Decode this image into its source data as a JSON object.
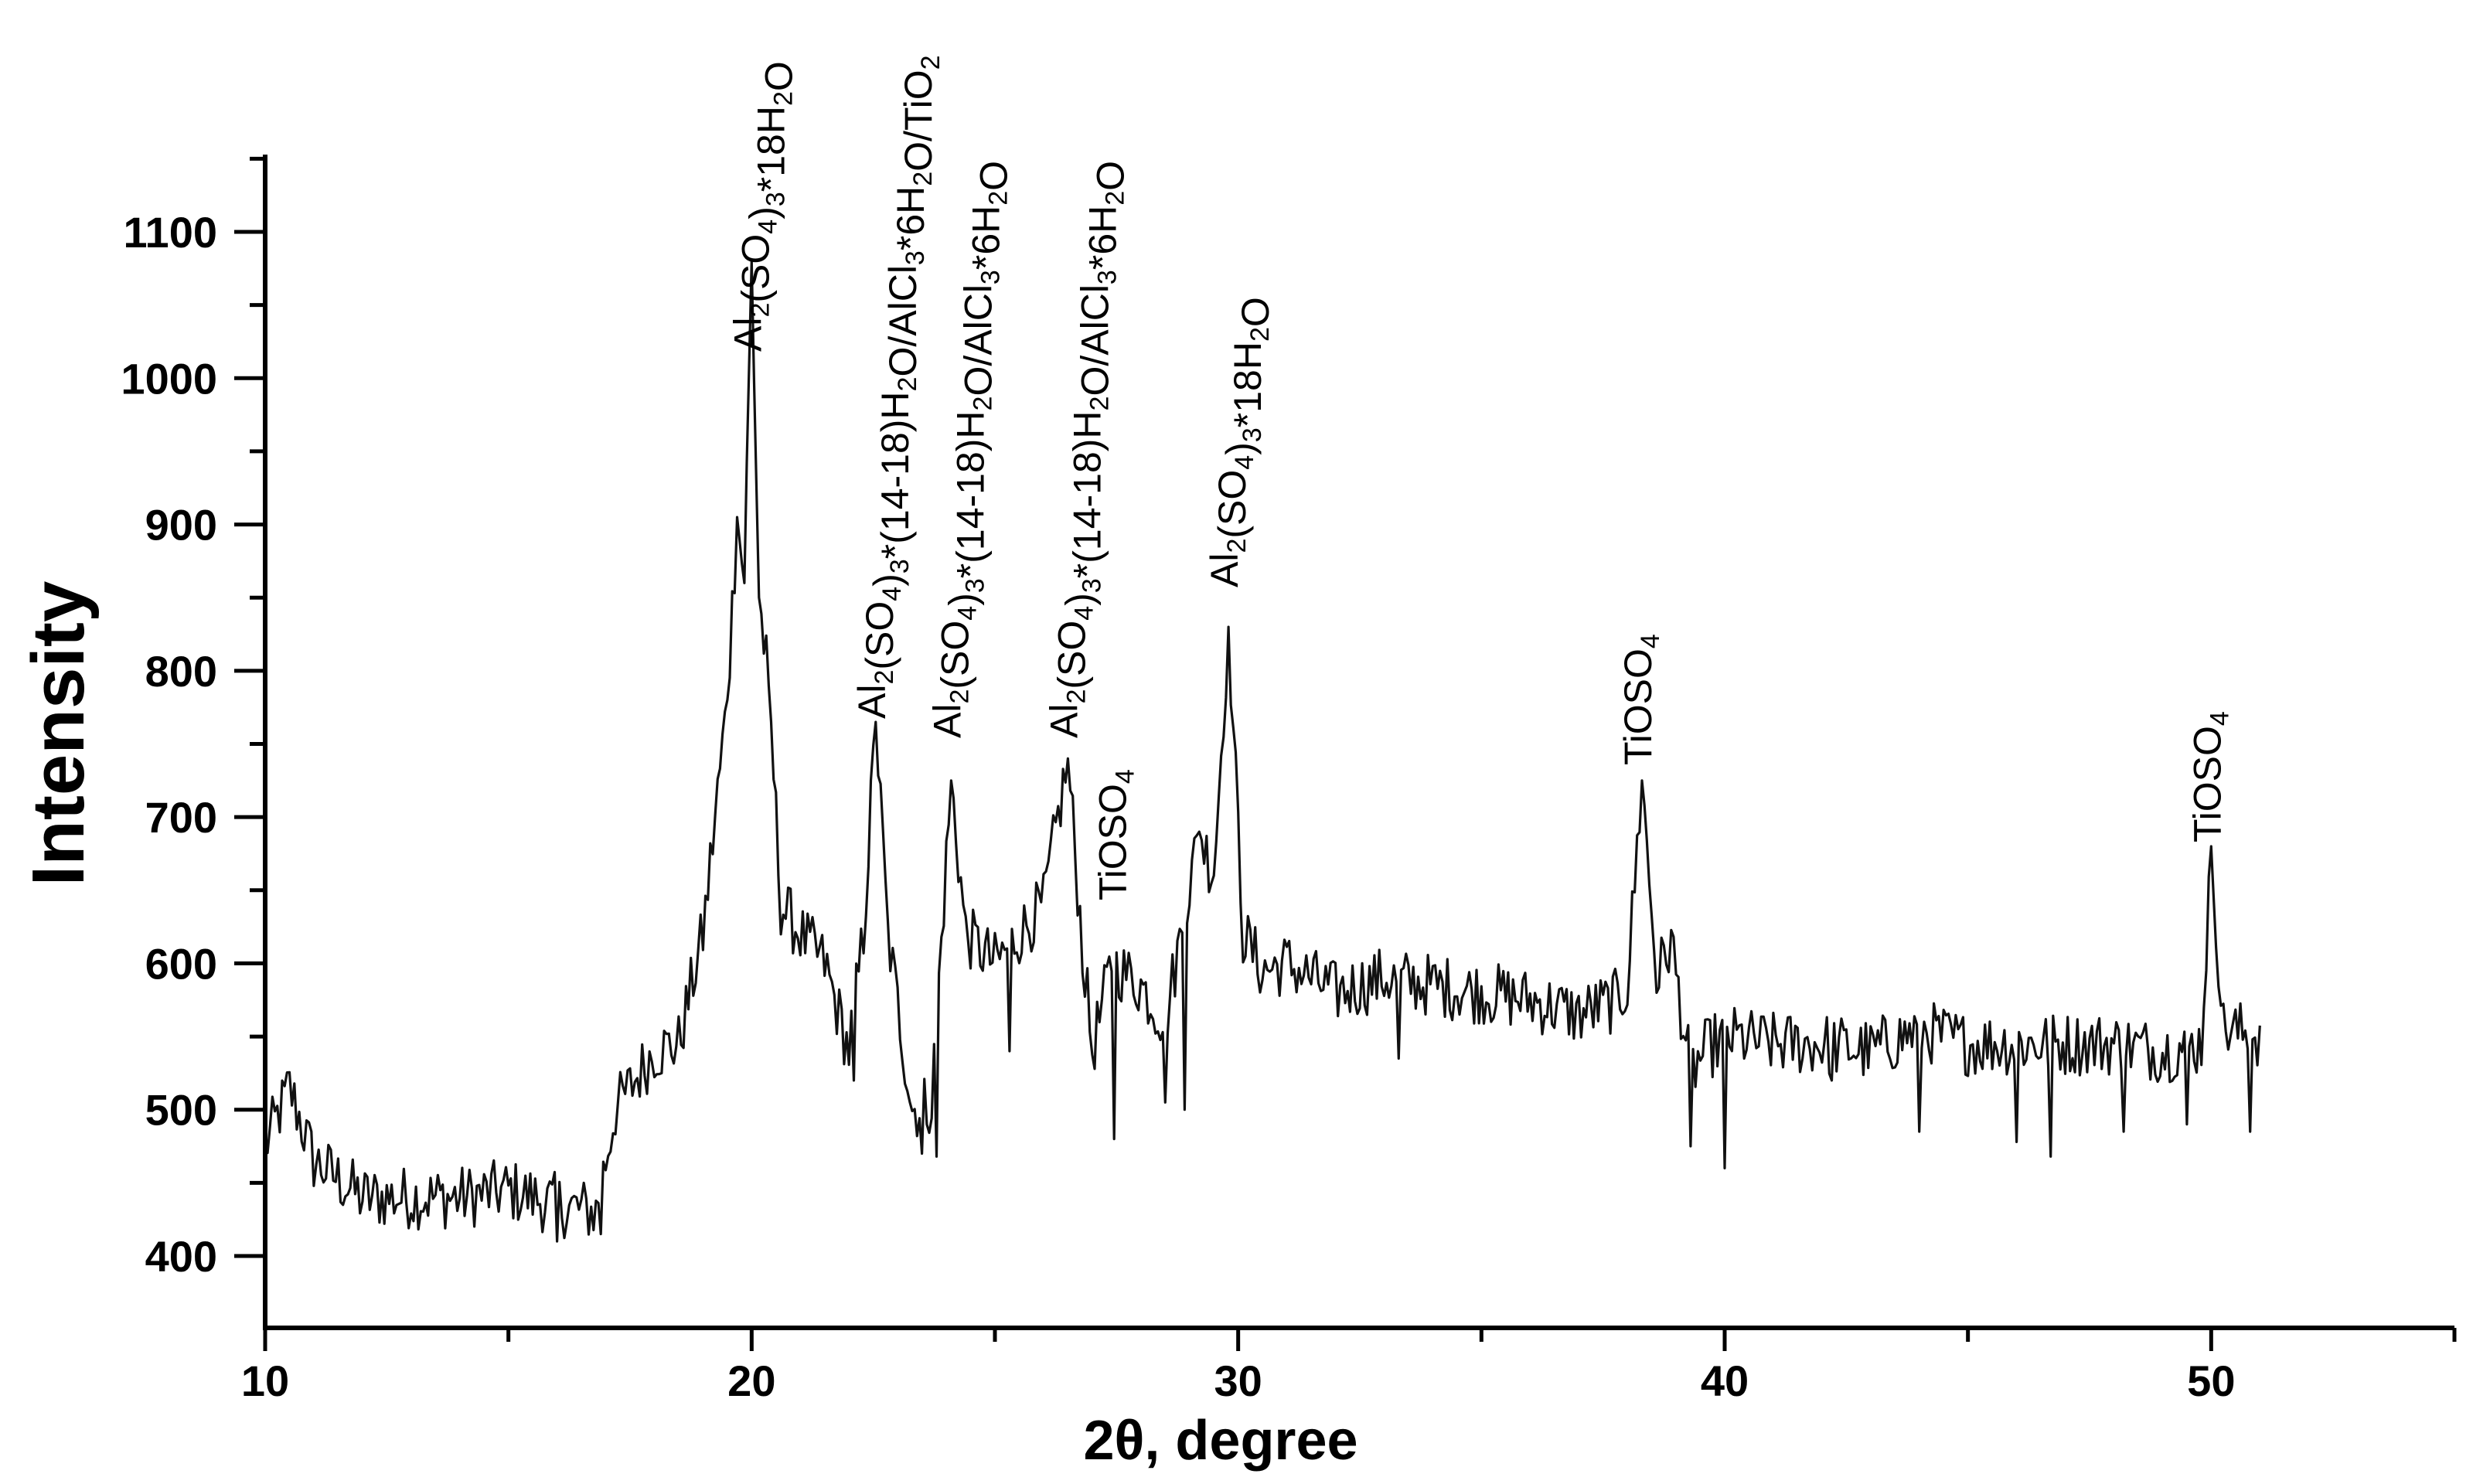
{
  "chart_data": {
    "type": "line",
    "xlabel": "2θ,  degree",
    "ylabel": "Intensity",
    "xlim": [
      10,
      55
    ],
    "ylim": [
      350,
      1150
    ],
    "x_ticks": [
      10,
      20,
      30,
      40,
      50
    ],
    "y_ticks": [
      400,
      500,
      600,
      700,
      800,
      900,
      1000,
      1100
    ],
    "grid": false,
    "line_color": "#111111",
    "series": [
      {
        "x_step": 0.05,
        "anchors": [
          [
            10.0,
            475
          ],
          [
            10.5,
            515
          ],
          [
            11.0,
            465
          ],
          [
            12.0,
            440
          ],
          [
            13.0,
            440
          ],
          [
            14.0,
            440
          ],
          [
            15.0,
            445
          ],
          [
            16.0,
            435
          ],
          [
            16.8,
            430
          ],
          [
            17.2,
            500
          ],
          [
            18.0,
            540
          ],
          [
            18.5,
            545
          ],
          [
            19.0,
            620
          ],
          [
            19.5,
            780
          ],
          [
            19.7,
            905
          ],
          [
            19.85,
            860
          ],
          [
            20.0,
            1080
          ],
          [
            20.15,
            850
          ],
          [
            20.35,
            790
          ],
          [
            20.6,
            640
          ],
          [
            21.0,
            620
          ],
          [
            21.5,
            600
          ],
          [
            22.0,
            540
          ],
          [
            22.3,
            620
          ],
          [
            22.55,
            765
          ],
          [
            22.8,
            620
          ],
          [
            23.3,
            500
          ],
          [
            23.7,
            505
          ],
          [
            24.1,
            725
          ],
          [
            24.4,
            620
          ],
          [
            25.0,
            600
          ],
          [
            26.0,
            640
          ],
          [
            26.5,
            740
          ],
          [
            26.8,
            610
          ],
          [
            27.0,
            540
          ],
          [
            27.4,
            600
          ],
          [
            28.0,
            585
          ],
          [
            28.5,
            560
          ],
          [
            29.2,
            690
          ],
          [
            29.5,
            660
          ],
          [
            29.8,
            830
          ],
          [
            30.1,
            620
          ],
          [
            30.5,
            595
          ],
          [
            31.0,
            600
          ],
          [
            32.0,
            580
          ],
          [
            33.0,
            590
          ],
          [
            34.0,
            585
          ],
          [
            35.0,
            580
          ],
          [
            36.0,
            575
          ],
          [
            37.0,
            565
          ],
          [
            37.8,
            575
          ],
          [
            38.0,
            585
          ],
          [
            38.3,
            725
          ],
          [
            38.6,
            590
          ],
          [
            38.9,
            615
          ],
          [
            39.3,
            525
          ],
          [
            39.6,
            540
          ],
          [
            40.0,
            550
          ],
          [
            41.0,
            545
          ],
          [
            42.0,
            545
          ],
          [
            43.0,
            540
          ],
          [
            44.0,
            555
          ],
          [
            45.0,
            545
          ],
          [
            46.0,
            545
          ],
          [
            47.0,
            545
          ],
          [
            48.0,
            545
          ],
          [
            49.0,
            540
          ],
          [
            49.8,
            545
          ],
          [
            50.0,
            680
          ],
          [
            50.25,
            555
          ],
          [
            51.0,
            550
          ]
        ],
        "dips": [
          [
            16.0,
            410
          ],
          [
            16.9,
            415
          ],
          [
            22.1,
            520
          ],
          [
            23.5,
            470
          ],
          [
            23.8,
            468
          ],
          [
            25.3,
            540
          ],
          [
            27.45,
            480
          ],
          [
            28.5,
            505
          ],
          [
            28.9,
            500
          ],
          [
            33.3,
            535
          ],
          [
            39.3,
            475
          ],
          [
            40.0,
            460
          ],
          [
            42.2,
            520
          ],
          [
            44.0,
            485
          ],
          [
            46.0,
            478
          ],
          [
            46.7,
            468
          ],
          [
            48.2,
            485
          ],
          [
            49.5,
            490
          ],
          [
            50.8,
            485
          ]
        ]
      }
    ],
    "annotations": [
      {
        "text": "Al2(SO4)3*18H2O",
        "x": 20.0
      },
      {
        "text": "Al2(SO4)3*(14-18)H2O/AlCl3*6H2O/TiO2",
        "x": 22.55
      },
      {
        "text": "Al2(SO4)3*(14-18)H2O/AlCl3*6H2O",
        "x": 24.1
      },
      {
        "text": "Al2(SO4)3*(14-18)H2O/AlCl3*6H2O",
        "x": 26.5
      },
      {
        "text": "TiOSO4",
        "x": 27.5
      },
      {
        "text": "Al2(SO4)3*18H2O",
        "x": 29.8
      },
      {
        "text": "TiOSO4",
        "x": 38.3
      },
      {
        "text": "TiOSO4",
        "x": 50.0
      }
    ]
  }
}
